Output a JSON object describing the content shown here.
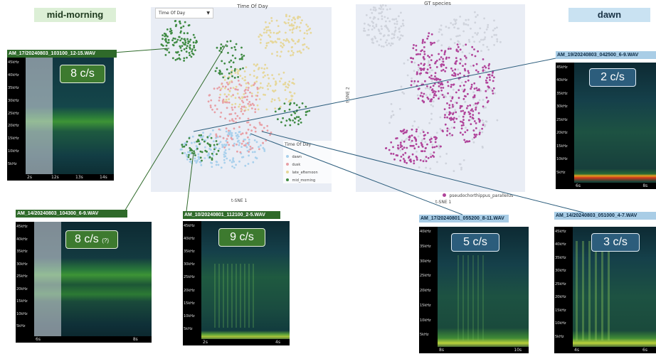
{
  "headers": {
    "mid_morning": "mid-morning",
    "dawn": "dawn"
  },
  "tsne_time": {
    "title": "Time Of Day",
    "dropdown": "Time Of Day",
    "xlabel": "t-SNE 1",
    "ylabel": "",
    "legend_title": "Time Of Day",
    "legend": [
      "dawn",
      "dusk",
      "late_afternoon",
      "mid_morning"
    ]
  },
  "tsne_species": {
    "title": "GT species",
    "xlabel": "t-SNE 1",
    "ylabel": "t-SNE 2",
    "legend": [
      "pseudochorthippus_parallelus"
    ]
  },
  "colors": {
    "dawn": "#a8d0ec",
    "dusk": "#e8a0a6",
    "late_afternoon": "#e6d79a",
    "mid_morning": "#3e8a42",
    "species": "#b0439a",
    "label_green": "#2f6a2a",
    "label_blue": "#a9cde6"
  },
  "spectrograms": [
    {
      "id": "s1",
      "file": "AM_17/20240803_103100_12-15.WAV",
      "rate": "8 c/s",
      "rate_extra": "",
      "yticks": [
        "45kHz",
        "40kHz",
        "35kHz",
        "30kHz",
        "25kHz",
        "20kHz",
        "15kHz",
        "10kHz",
        "5kHz",
        "0kHz"
      ],
      "xticks": [
        "2s",
        "12s",
        "13s",
        "14s"
      ]
    },
    {
      "id": "s2",
      "file": "AM_14/20240803_104300_6-9.WAV",
      "rate": "8 c/s",
      "rate_extra": "(?)",
      "yticks": [
        "45kHz",
        "40kHz",
        "35kHz",
        "30kHz",
        "25kHz",
        "20kHz",
        "15kHz",
        "10kHz",
        "5kHz",
        "0kHz"
      ],
      "xticks": [
        "6s",
        "8s"
      ]
    },
    {
      "id": "s3",
      "file": "AM_10/20240801_112100_2-5.WAV",
      "rate": "9 c/s",
      "rate_extra": "",
      "yticks": [
        "45kHz",
        "40kHz",
        "35kHz",
        "30kHz",
        "25kHz",
        "20kHz",
        "15kHz",
        "10kHz",
        "5kHz",
        "0kHz"
      ],
      "xticks": [
        "2s",
        "4s"
      ]
    },
    {
      "id": "s4",
      "file": "AM_17/20240801_055200_8-11.WAV",
      "rate": "5 c/s",
      "rate_extra": "",
      "yticks": [
        "40kHz",
        "35kHz",
        "30kHz",
        "25kHz",
        "20kHz",
        "15kHz",
        "10kHz",
        "5kHz",
        "0kHz"
      ],
      "xticks": [
        "8s",
        "10s"
      ]
    },
    {
      "id": "s5",
      "file": "AM_19/20240803_042500_6-9.WAV",
      "rate": "2 c/s",
      "rate_extra": "",
      "yticks": [
        "45kHz",
        "40kHz",
        "35kHz",
        "30kHz",
        "25kHz",
        "20kHz",
        "15kHz",
        "10kHz",
        "5kHz",
        "0kHz"
      ],
      "xticks": [
        "6s",
        "8s"
      ]
    },
    {
      "id": "s6",
      "file": "AM_14/20240803_051000_4-7.WAV",
      "rate": "3 c/s",
      "rate_extra": "",
      "yticks": [
        "45kHz",
        "40kHz",
        "35kHz",
        "30kHz",
        "25kHz",
        "20kHz",
        "15kHz",
        "10kHz",
        "5kHz",
        "0kHz"
      ],
      "xticks": [
        "4s",
        "6s"
      ]
    }
  ]
}
